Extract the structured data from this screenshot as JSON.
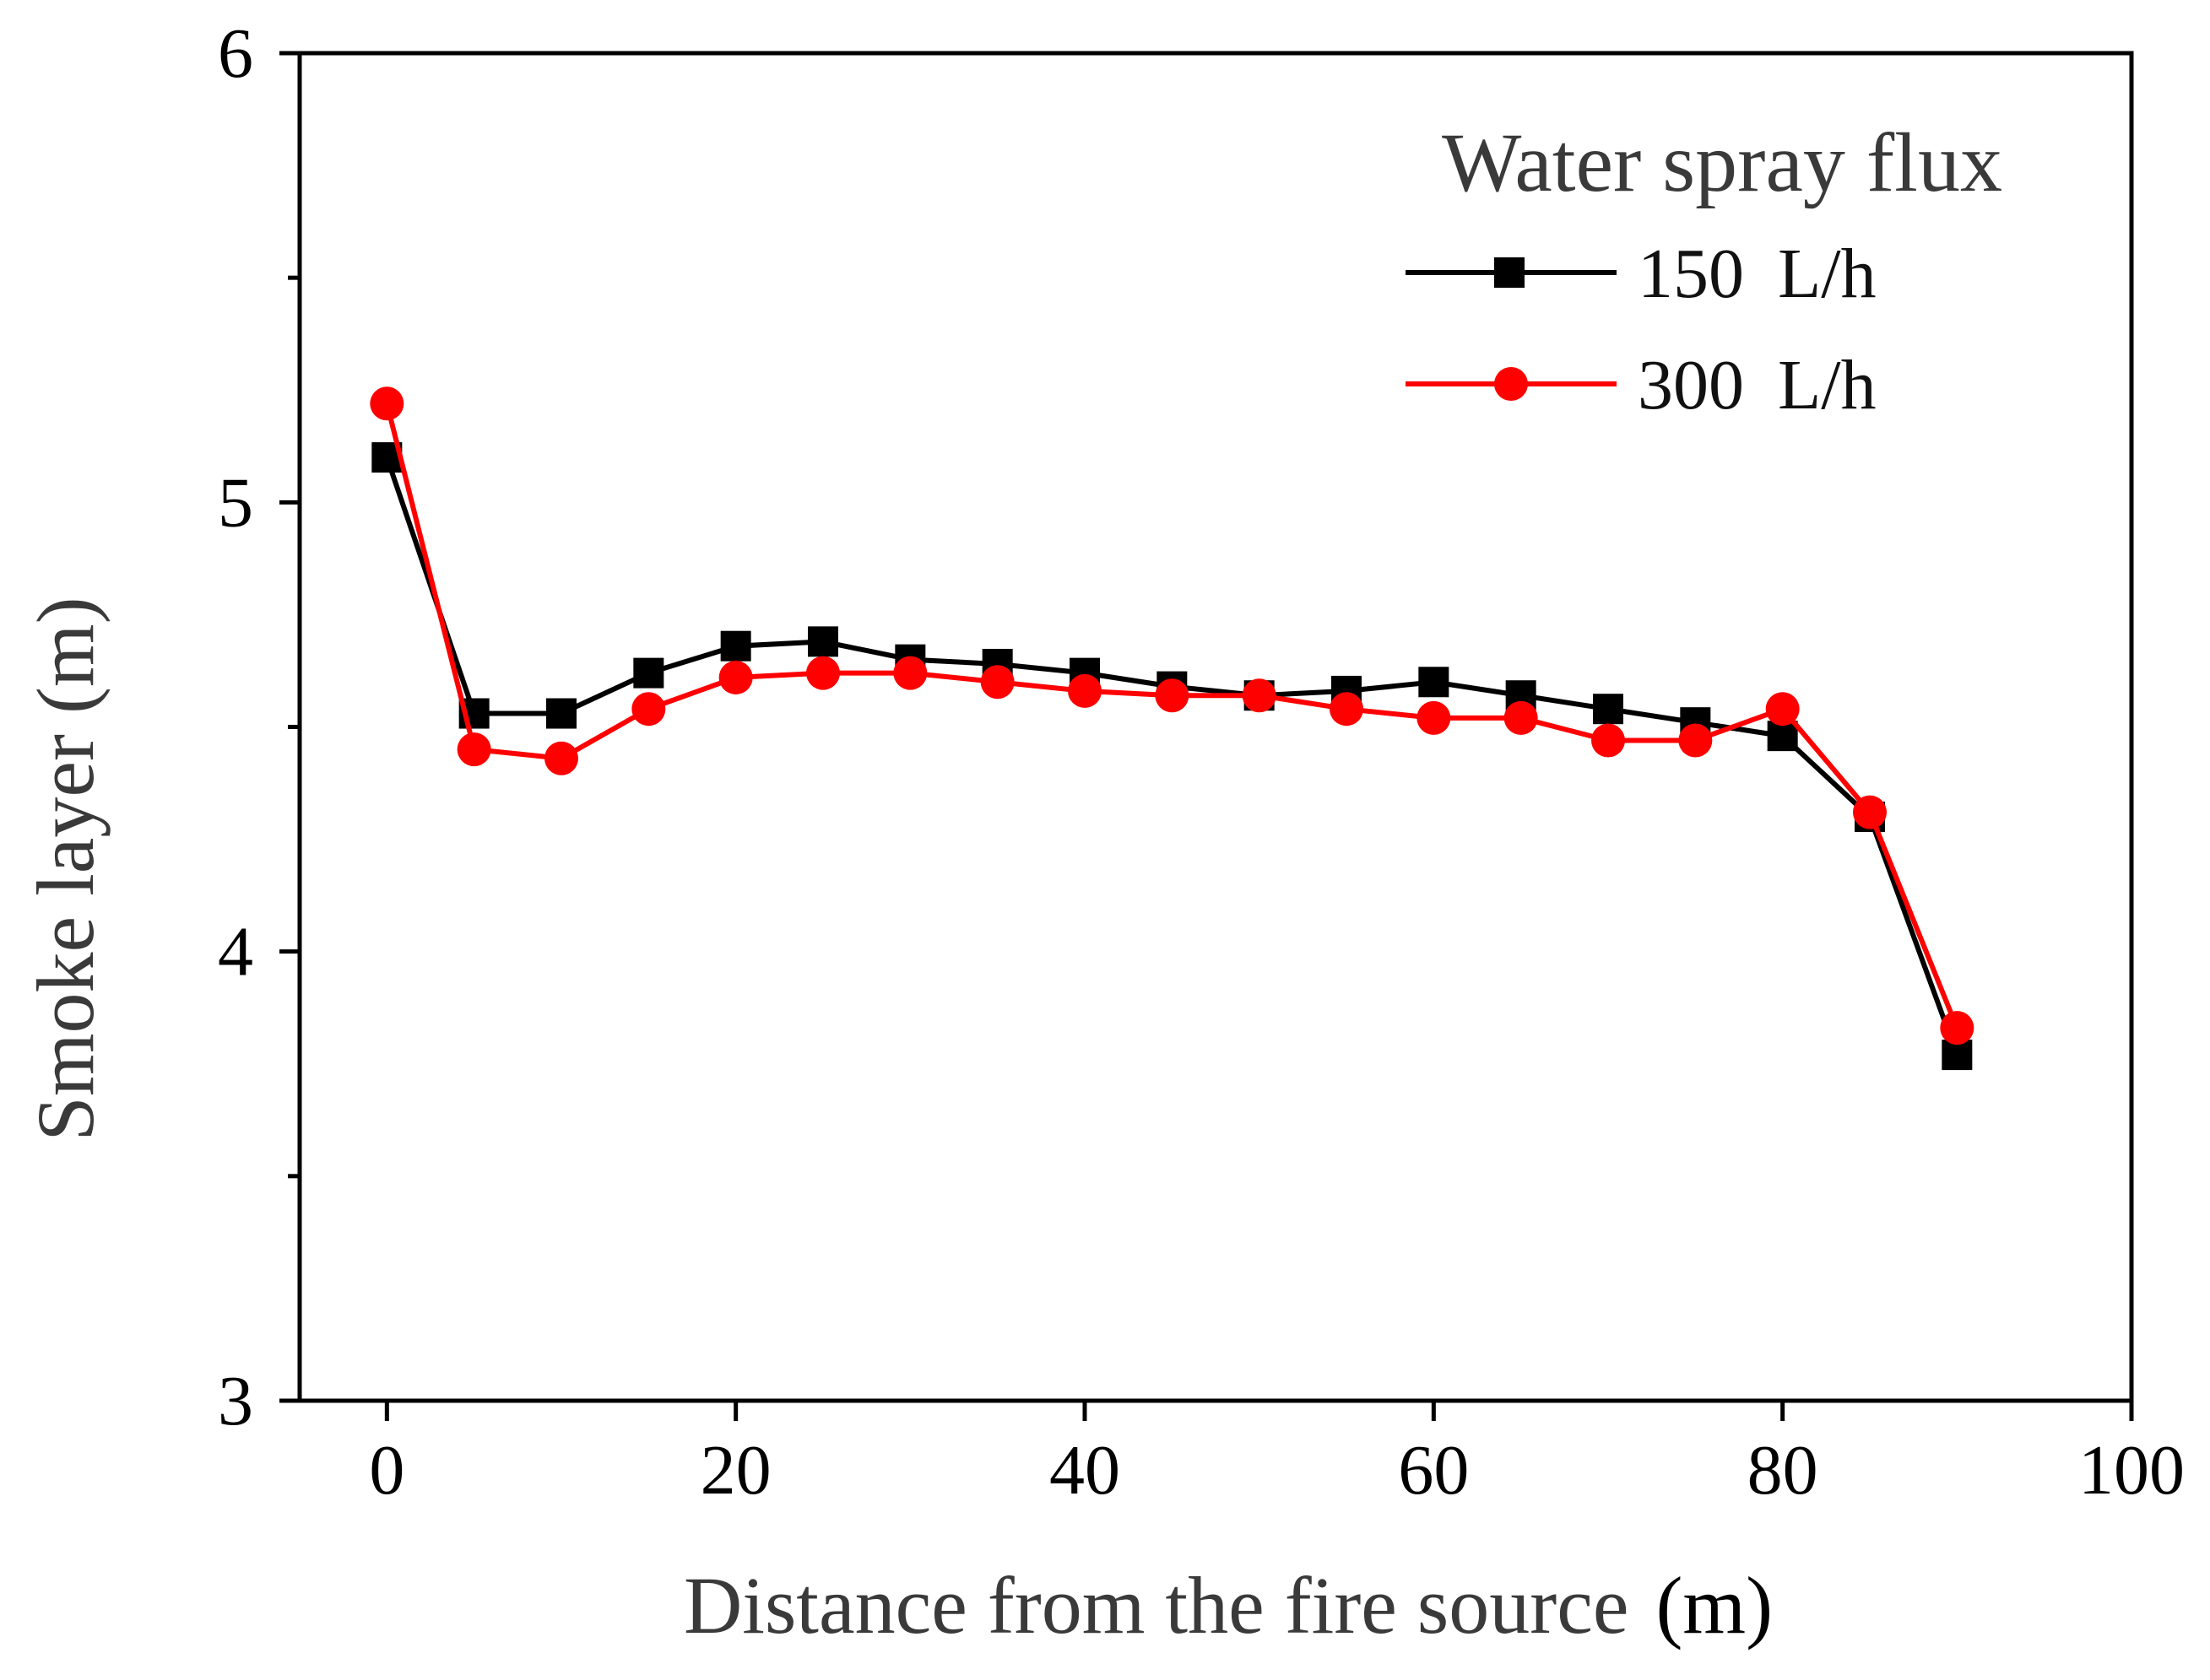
{
  "chart_data": {
    "type": "line",
    "title": "",
    "xlabel": "Distance from the fire source",
    "xlabel_unit": "(m)",
    "ylabel": "Smoke layer (m)",
    "xlim": [
      -5,
      100
    ],
    "ylim": [
      3,
      6
    ],
    "x_ticks": [
      "0",
      "20",
      "40",
      "60",
      "80",
      "100"
    ],
    "x_tick_values": [
      0,
      20,
      40,
      60,
      80,
      100
    ],
    "y_ticks": [
      "3",
      "4",
      "5",
      "6"
    ],
    "y_tick_values": [
      3,
      4,
      5,
      6
    ],
    "y_minor_ticks": [
      3.5,
      4.5,
      5.5
    ],
    "grid": false,
    "legend": {
      "title": "Water spray flux",
      "placement": "top-right"
    },
    "x": [
      0,
      5,
      10,
      15,
      20,
      25,
      30,
      35,
      40,
      45,
      50,
      55,
      60,
      65,
      70,
      75,
      80,
      85,
      90
    ],
    "series": [
      {
        "name": "150",
        "unit": "L/h",
        "color": "#000000",
        "marker": "square",
        "values": [
          5.1,
          4.53,
          4.53,
          4.62,
          4.68,
          4.69,
          4.65,
          4.64,
          4.62,
          4.59,
          4.57,
          4.58,
          4.6,
          4.57,
          4.54,
          4.51,
          4.48,
          4.3,
          3.77
        ]
      },
      {
        "name": "300",
        "unit": "L/h",
        "color": "#ff0000",
        "marker": "circle",
        "values": [
          5.22,
          4.45,
          4.43,
          4.54,
          4.61,
          4.62,
          4.62,
          4.6,
          4.58,
          4.57,
          4.57,
          4.54,
          4.52,
          4.52,
          4.47,
          4.47,
          4.54,
          4.31,
          3.83
        ]
      }
    ]
  }
}
